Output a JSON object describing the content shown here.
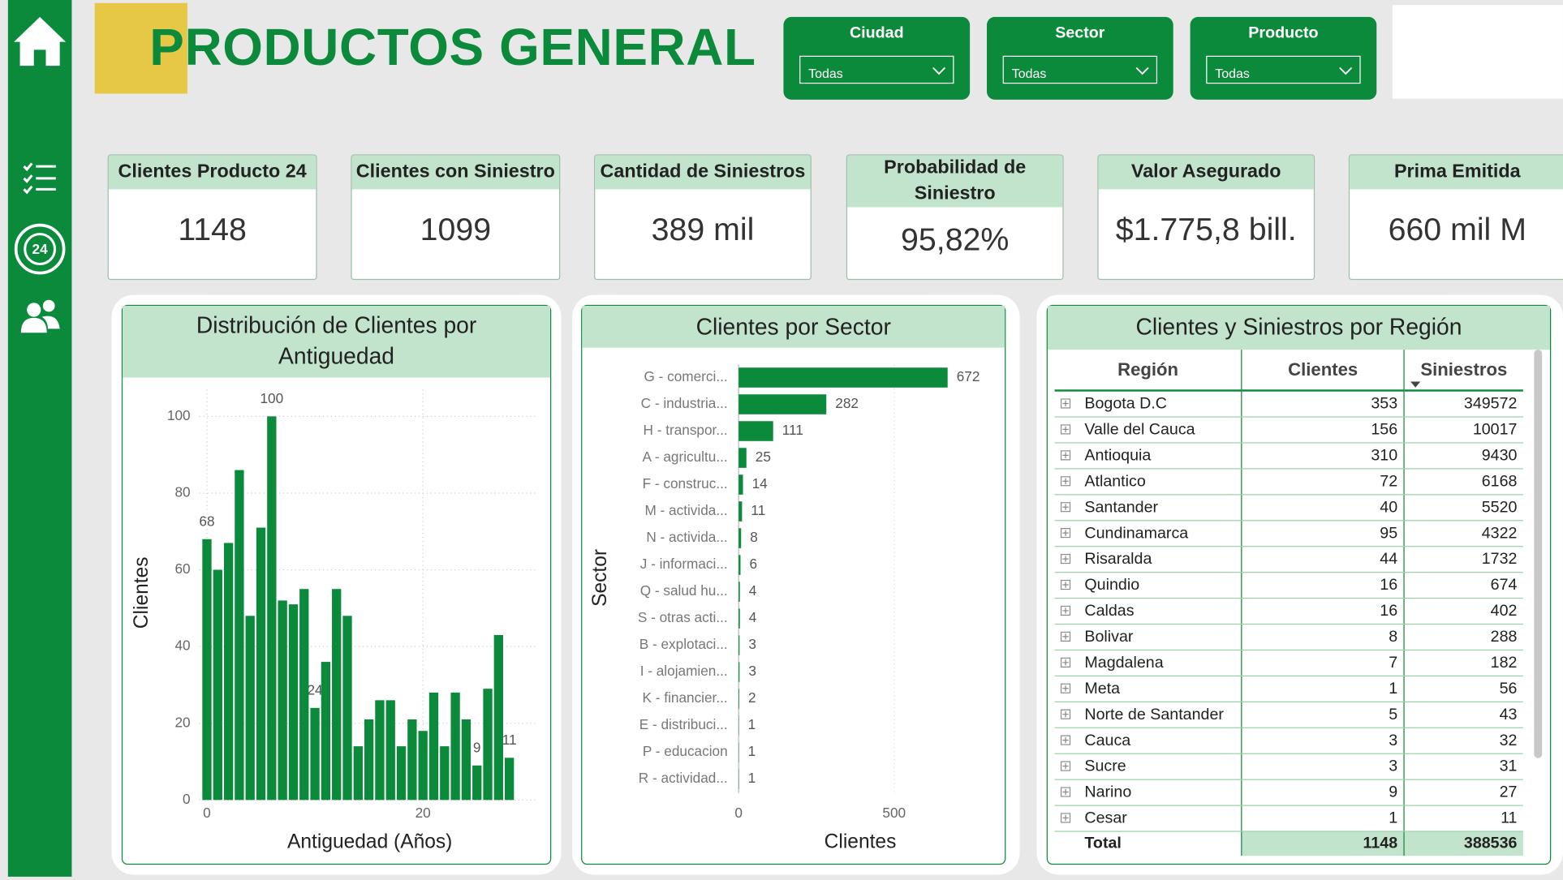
{
  "header": {
    "title": "PRODUCTOS GENERAL"
  },
  "filters": [
    {
      "label": "Ciudad",
      "value": "Todas"
    },
    {
      "label": "Sector",
      "value": "Todas"
    },
    {
      "label": "Producto",
      "value": "Todas"
    }
  ],
  "kpis": [
    {
      "title": "Clientes Producto 24",
      "value": "1148"
    },
    {
      "title": "Clientes con Siniestro",
      "value": "1099"
    },
    {
      "title": "Cantidad de Siniestros",
      "value": "389 mil"
    },
    {
      "title": "Probabilidad de Siniestro",
      "value": "95,82%"
    },
    {
      "title": "Valor Asegurado",
      "value": "$1.775,8 bill."
    },
    {
      "title": "Prima Emitida",
      "value": "660 mil M"
    }
  ],
  "chart_data": [
    {
      "type": "bar",
      "title": "Distribución de Clientes por Antiguedad",
      "x_label": "Antiguedad (Años)",
      "y_label": "Clientes",
      "color": "#0b8a3b",
      "grid": true,
      "x": [
        0,
        1,
        2,
        3,
        4,
        5,
        6,
        7,
        8,
        9,
        10,
        11,
        12,
        13,
        14,
        15,
        16,
        17,
        18,
        19,
        20,
        21,
        22,
        23,
        24,
        25,
        26,
        27,
        28
      ],
      "values": [
        68,
        60,
        67,
        86,
        48,
        71,
        100,
        52,
        51,
        55,
        24,
        36,
        55,
        48,
        14,
        21,
        26,
        26,
        14,
        21,
        18,
        28,
        14,
        28,
        21,
        9,
        29,
        43,
        11
      ],
      "value_labels": [
        "68",
        null,
        null,
        null,
        null,
        null,
        "100",
        null,
        null,
        null,
        "24",
        null,
        null,
        null,
        null,
        null,
        null,
        null,
        null,
        null,
        null,
        null,
        null,
        null,
        null,
        "9",
        null,
        null,
        "11"
      ],
      "xlim": [
        -0.7,
        30.4
      ],
      "xticks": [
        0,
        20
      ],
      "ylim": [
        0,
        107
      ],
      "yticks": [
        0,
        20,
        40,
        60,
        80,
        100
      ]
    },
    {
      "type": "barh",
      "title": "Clientes por Sector",
      "x_label": "Clientes",
      "y_label": "Sector",
      "color": "#0b8a3b",
      "grid": true,
      "categories": [
        "G - comerci...",
        "C - industria...",
        "H - transpor...",
        "A - agricultu...",
        "F - construc...",
        "M - activida...",
        "N - activida...",
        "J - informaci...",
        "Q - salud hu...",
        "S - otras acti...",
        "B - explotaci...",
        "I - alojamien...",
        "K - financier...",
        "E - distribuci...",
        "P - educacion",
        "R - actividad..."
      ],
      "values": [
        672,
        282,
        111,
        25,
        14,
        11,
        8,
        6,
        4,
        4,
        3,
        3,
        2,
        1,
        1,
        1
      ],
      "xlim": [
        0,
        800
      ],
      "xticks": [
        0,
        500
      ]
    }
  ],
  "table": {
    "title": "Clientes y Siniestros por Región",
    "columns": [
      "Región",
      "Clientes",
      "Siniestros"
    ],
    "rows": [
      [
        "Bogota D.C",
        353,
        349572
      ],
      [
        "Valle del Cauca",
        156,
        10017
      ],
      [
        "Antioquia",
        310,
        9430
      ],
      [
        "Atlantico",
        72,
        6168
      ],
      [
        "Santander",
        40,
        5520
      ],
      [
        "Cundinamarca",
        95,
        4322
      ],
      [
        "Risaralda",
        44,
        1732
      ],
      [
        "Quindio",
        16,
        674
      ],
      [
        "Caldas",
        16,
        402
      ],
      [
        "Bolivar",
        8,
        288
      ],
      [
        "Magdalena",
        7,
        182
      ],
      [
        "Meta",
        1,
        56
      ],
      [
        "Norte de Santander",
        5,
        43
      ],
      [
        "Cauca",
        3,
        32
      ],
      [
        "Sucre",
        3,
        31
      ],
      [
        "Narino",
        9,
        27
      ],
      [
        "Cesar",
        1,
        11
      ]
    ],
    "total": [
      "Total",
      1148,
      388536
    ]
  }
}
